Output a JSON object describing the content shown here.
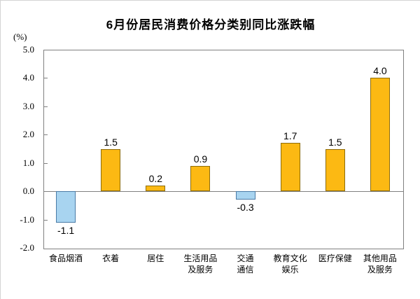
{
  "chart_data": {
    "type": "bar",
    "title": "6月份居民消费价格分类别同比涨跌幅",
    "unit_label": "(%)",
    "categories": [
      "食品烟酒",
      "衣着",
      "居住",
      "生活用品及服务",
      "交通通信",
      "教育文化娱乐",
      "医疗保健",
      "其他用品及服务"
    ],
    "category_lines": [
      [
        "食品烟酒"
      ],
      [
        "衣着"
      ],
      [
        "居住"
      ],
      [
        "生活用品",
        "及服务"
      ],
      [
        "交通",
        "通信"
      ],
      [
        "教育文化",
        "娱乐"
      ],
      [
        "医疗保健"
      ],
      [
        "其他用品",
        "及服务"
      ]
    ],
    "values": [
      -1.1,
      1.5,
      0.2,
      0.9,
      -0.3,
      1.7,
      1.5,
      4.0
    ],
    "value_labels": [
      "-1.1",
      "1.5",
      "0.2",
      "0.9",
      "-0.3",
      "1.7",
      "1.5",
      "4.0"
    ],
    "xlabel": "",
    "ylabel": "(%)",
    "ylim": [
      -2.0,
      5.0
    ],
    "y_ticks": [
      5.0,
      4.0,
      3.0,
      2.0,
      1.0,
      0.0,
      -1.0,
      -2.0
    ],
    "y_tick_labels": [
      "5.0",
      "4.0",
      "3.0",
      "2.0",
      "1.0",
      "0.0",
      "-1.0",
      "-2.0"
    ],
    "grid": "off",
    "legend": "none",
    "colors": {
      "positive_fill": "#FCB913",
      "positive_border": "#8E6C0A",
      "negative_fill": "#A8D4F0",
      "negative_border": "#4A7BA6",
      "axis_line": "#808080",
      "text": "#000000"
    }
  }
}
